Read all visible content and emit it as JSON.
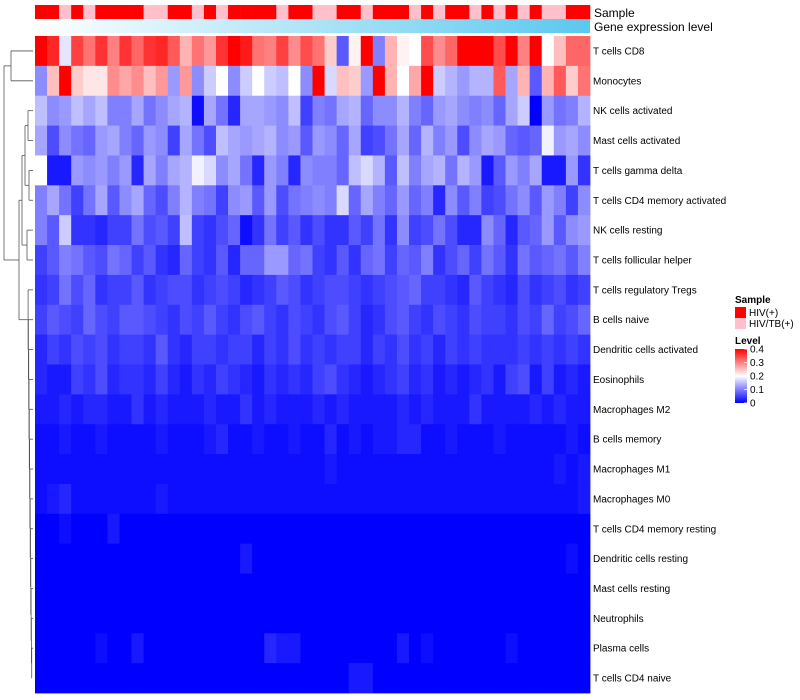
{
  "chart_data": {
    "type": "heatmap",
    "title": "",
    "annotation_labels": {
      "sample": "Sample",
      "expression": "Gene expression level"
    },
    "rows": [
      "T cells CD8",
      "Monocytes",
      "NK cells activated",
      "Mast cells activated",
      "T cells gamma delta",
      "T cells CD4 memory activated",
      "NK cells resting",
      "T cells follicular helper",
      "T cells regulatory  Tregs",
      "B cells naive",
      "Dendritic cells activated",
      "Eosinophils",
      "Macrophages M2",
      "B cells memory",
      "Macrophages M1",
      "Macrophages M0",
      "T cells CD4 memory resting",
      "Dendritic cells resting",
      "Mast cells resting",
      "Neutrophils",
      "Plasma cells",
      "T cells CD4 naive"
    ],
    "n_columns": 46,
    "column_groups": [
      0,
      0,
      1,
      0,
      1,
      0,
      0,
      0,
      0,
      1,
      1,
      0,
      0,
      1,
      0,
      1,
      0,
      0,
      0,
      0,
      1,
      0,
      0,
      1,
      1,
      0,
      0,
      1,
      0,
      0,
      0,
      1,
      0,
      1,
      0,
      0,
      1,
      0,
      1,
      0,
      1,
      0,
      1,
      1,
      0,
      0
    ],
    "values": [
      [
        0.4,
        0.37,
        0.18,
        0.35,
        0.31,
        0.36,
        0.3,
        0.36,
        0.32,
        0.36,
        0.37,
        0.33,
        0.26,
        0.31,
        0.28,
        0.36,
        0.4,
        0.38,
        0.31,
        0.3,
        0.35,
        0.29,
        0.34,
        0.31,
        0.24,
        0.07,
        0.21,
        0.4,
        0.1,
        0.26,
        0.21,
        0.2,
        0.34,
        0.29,
        0.32,
        0.4,
        0.4,
        0.4,
        0.34,
        0.4,
        0.3,
        0.4,
        0.2,
        0.25,
        0.32,
        0.32
      ],
      [
        0.11,
        0.25,
        0.4,
        0.24,
        0.22,
        0.22,
        0.29,
        0.27,
        0.29,
        0.25,
        0.28,
        0.12,
        0.28,
        0.11,
        0.16,
        0.2,
        0.11,
        0.16,
        0.2,
        0.16,
        0.15,
        0.2,
        0.11,
        0.4,
        0.17,
        0.25,
        0.24,
        0.12,
        0.4,
        0.26,
        0.2,
        0.27,
        0.4,
        0.16,
        0.14,
        0.12,
        0.14,
        0.14,
        0.33,
        0.13,
        0.26,
        0.07,
        0.26,
        0.33,
        0.24,
        0.31
      ],
      [
        0.15,
        0.11,
        0.12,
        0.15,
        0.13,
        0.15,
        0.1,
        0.1,
        0.13,
        0.09,
        0.11,
        0.13,
        0.14,
        0.01,
        0.13,
        0.09,
        0.03,
        0.13,
        0.13,
        0.12,
        0.11,
        0.15,
        0.05,
        0.1,
        0.09,
        0.13,
        0.14,
        0.08,
        0.11,
        0.11,
        0.14,
        0.1,
        0.08,
        0.12,
        0.13,
        0.11,
        0.1,
        0.11,
        0.08,
        0.13,
        0.16,
        0.0,
        0.12,
        0.09,
        0.1,
        0.14
      ],
      [
        0.13,
        0.06,
        0.11,
        0.09,
        0.08,
        0.12,
        0.13,
        0.1,
        0.08,
        0.12,
        0.11,
        0.05,
        0.13,
        0.09,
        0.06,
        0.15,
        0.13,
        0.12,
        0.13,
        0.14,
        0.11,
        0.12,
        0.07,
        0.12,
        0.11,
        0.08,
        0.13,
        0.05,
        0.06,
        0.09,
        0.13,
        0.08,
        0.14,
        0.1,
        0.12,
        0.06,
        0.11,
        0.13,
        0.12,
        0.08,
        0.07,
        0.08,
        0.19,
        0.12,
        0.13,
        0.11
      ],
      [
        0.2,
        0.02,
        0.02,
        0.12,
        0.11,
        0.12,
        0.1,
        0.12,
        0.03,
        0.13,
        0.1,
        0.13,
        0.14,
        0.19,
        0.17,
        0.11,
        0.13,
        0.09,
        0.03,
        0.12,
        0.1,
        0.03,
        0.11,
        0.1,
        0.1,
        0.08,
        0.15,
        0.17,
        0.14,
        0.07,
        0.15,
        0.1,
        0.13,
        0.14,
        0.09,
        0.14,
        0.12,
        0.02,
        0.07,
        0.12,
        0.1,
        0.13,
        0.02,
        0.02,
        0.12,
        0.04
      ],
      [
        0.1,
        0.13,
        0.09,
        0.05,
        0.09,
        0.13,
        0.07,
        0.11,
        0.13,
        0.08,
        0.06,
        0.1,
        0.14,
        0.1,
        0.09,
        0.05,
        0.11,
        0.12,
        0.07,
        0.12,
        0.06,
        0.09,
        0.1,
        0.11,
        0.1,
        0.17,
        0.08,
        0.13,
        0.1,
        0.08,
        0.12,
        0.08,
        0.1,
        0.03,
        0.11,
        0.07,
        0.1,
        0.05,
        0.06,
        0.09,
        0.11,
        0.07,
        0.12,
        0.1,
        0.05,
        0.11
      ],
      [
        0.1,
        0.07,
        0.16,
        0.04,
        0.04,
        0.03,
        0.05,
        0.05,
        0.09,
        0.06,
        0.07,
        0.05,
        0.15,
        0.05,
        0.04,
        0.06,
        0.08,
        0.01,
        0.04,
        0.09,
        0.05,
        0.07,
        0.04,
        0.06,
        0.04,
        0.04,
        0.07,
        0.05,
        0.09,
        0.04,
        0.11,
        0.05,
        0.06,
        0.09,
        0.06,
        0.03,
        0.03,
        0.11,
        0.08,
        0.03,
        0.07,
        0.08,
        0.12,
        0.07,
        0.11,
        0.12
      ],
      [
        0.05,
        0.07,
        0.1,
        0.09,
        0.07,
        0.06,
        0.09,
        0.08,
        0.05,
        0.07,
        0.04,
        0.03,
        0.08,
        0.05,
        0.04,
        0.07,
        0.03,
        0.08,
        0.08,
        0.12,
        0.12,
        0.08,
        0.09,
        0.05,
        0.04,
        0.07,
        0.04,
        0.08,
        0.09,
        0.05,
        0.08,
        0.07,
        0.1,
        0.04,
        0.06,
        0.08,
        0.05,
        0.09,
        0.07,
        0.04,
        0.09,
        0.07,
        0.08,
        0.09,
        0.07,
        0.1
      ],
      [
        0.04,
        0.05,
        0.09,
        0.06,
        0.08,
        0.04,
        0.05,
        0.05,
        0.07,
        0.04,
        0.05,
        0.06,
        0.06,
        0.04,
        0.05,
        0.06,
        0.05,
        0.03,
        0.04,
        0.05,
        0.07,
        0.06,
        0.04,
        0.05,
        0.06,
        0.06,
        0.05,
        0.04,
        0.05,
        0.06,
        0.07,
        0.08,
        0.05,
        0.05,
        0.04,
        0.03,
        0.07,
        0.05,
        0.04,
        0.03,
        0.06,
        0.04,
        0.05,
        0.06,
        0.04,
        0.05
      ],
      [
        0.05,
        0.07,
        0.06,
        0.05,
        0.08,
        0.06,
        0.05,
        0.07,
        0.07,
        0.06,
        0.05,
        0.04,
        0.06,
        0.05,
        0.07,
        0.05,
        0.04,
        0.06,
        0.07,
        0.05,
        0.04,
        0.06,
        0.05,
        0.04,
        0.06,
        0.07,
        0.05,
        0.03,
        0.04,
        0.06,
        0.07,
        0.05,
        0.04,
        0.06,
        0.05,
        0.04,
        0.06,
        0.05,
        0.05,
        0.04,
        0.06,
        0.05,
        0.08,
        0.05,
        0.06,
        0.08
      ],
      [
        0.03,
        0.05,
        0.04,
        0.06,
        0.05,
        0.06,
        0.04,
        0.05,
        0.05,
        0.04,
        0.07,
        0.04,
        0.03,
        0.05,
        0.05,
        0.04,
        0.05,
        0.05,
        0.03,
        0.05,
        0.04,
        0.06,
        0.04,
        0.05,
        0.04,
        0.05,
        0.05,
        0.03,
        0.05,
        0.04,
        0.06,
        0.04,
        0.05,
        0.03,
        0.05,
        0.04,
        0.05,
        0.04,
        0.04,
        0.04,
        0.05,
        0.04,
        0.05,
        0.04,
        0.05,
        0.04
      ],
      [
        0.03,
        0.02,
        0.02,
        0.05,
        0.04,
        0.06,
        0.03,
        0.04,
        0.04,
        0.03,
        0.05,
        0.03,
        0.02,
        0.04,
        0.03,
        0.05,
        0.04,
        0.03,
        0.02,
        0.04,
        0.03,
        0.04,
        0.03,
        0.05,
        0.06,
        0.04,
        0.03,
        0.02,
        0.03,
        0.04,
        0.05,
        0.03,
        0.04,
        0.02,
        0.03,
        0.02,
        0.03,
        0.04,
        0.02,
        0.05,
        0.06,
        0.02,
        0.05,
        0.02,
        0.03,
        0.02
      ],
      [
        0.02,
        0.02,
        0.03,
        0.02,
        0.03,
        0.03,
        0.02,
        0.02,
        0.04,
        0.02,
        0.03,
        0.02,
        0.02,
        0.02,
        0.03,
        0.02,
        0.02,
        0.04,
        0.02,
        0.03,
        0.02,
        0.02,
        0.02,
        0.03,
        0.02,
        0.03,
        0.02,
        0.02,
        0.02,
        0.02,
        0.03,
        0.02,
        0.03,
        0.02,
        0.02,
        0.02,
        0.04,
        0.02,
        0.02,
        0.02,
        0.02,
        0.03,
        0.02,
        0.03,
        0.02,
        0.02
      ],
      [
        0.01,
        0.01,
        0.02,
        0.01,
        0.01,
        0.02,
        0.01,
        0.01,
        0.01,
        0.01,
        0.02,
        0.01,
        0.01,
        0.01,
        0.02,
        0.03,
        0.01,
        0.01,
        0.02,
        0.01,
        0.01,
        0.02,
        0.01,
        0.01,
        0.03,
        0.01,
        0.02,
        0.01,
        0.02,
        0.02,
        0.03,
        0.03,
        0.01,
        0.01,
        0.02,
        0.01,
        0.01,
        0.01,
        0.02,
        0.01,
        0.01,
        0.01,
        0.01,
        0.01,
        0.02,
        0.01
      ],
      [
        0.01,
        0.01,
        0.01,
        0.01,
        0.01,
        0.01,
        0.01,
        0.01,
        0.01,
        0.01,
        0.01,
        0.01,
        0.01,
        0.01,
        0.01,
        0.01,
        0.01,
        0.01,
        0.01,
        0.01,
        0.01,
        0.01,
        0.01,
        0.01,
        0.02,
        0.01,
        0.01,
        0.01,
        0.01,
        0.01,
        0.01,
        0.01,
        0.01,
        0.01,
        0.01,
        0.01,
        0.01,
        0.01,
        0.01,
        0.01,
        0.01,
        0.01,
        0.01,
        0.02,
        0.01,
        0.02
      ],
      [
        0.01,
        0.02,
        0.03,
        0.01,
        0.01,
        0.01,
        0.01,
        0.01,
        0.01,
        0.01,
        0.02,
        0.01,
        0.01,
        0.01,
        0.01,
        0.01,
        0.01,
        0.01,
        0.01,
        0.01,
        0.01,
        0.01,
        0.01,
        0.01,
        0.01,
        0.01,
        0.01,
        0.01,
        0.01,
        0.01,
        0.01,
        0.01,
        0.01,
        0.01,
        0.01,
        0.01,
        0.01,
        0.01,
        0.01,
        0.01,
        0.01,
        0.01,
        0.01,
        0.01,
        0.01,
        0.02
      ],
      [
        0.0,
        0.0,
        0.01,
        0.0,
        0.0,
        0.0,
        0.02,
        0.0,
        0.0,
        0.0,
        0.0,
        0.0,
        0.0,
        0.0,
        0.0,
        0.0,
        0.0,
        0.0,
        0.0,
        0.0,
        0.0,
        0.0,
        0.0,
        0.0,
        0.0,
        0.0,
        0.0,
        0.0,
        0.0,
        0.0,
        0.0,
        0.0,
        0.0,
        0.0,
        0.0,
        0.0,
        0.0,
        0.0,
        0.0,
        0.0,
        0.0,
        0.0,
        0.0,
        0.0,
        0.0,
        0.0
      ],
      [
        0.0,
        0.0,
        0.0,
        0.0,
        0.0,
        0.0,
        0.0,
        0.0,
        0.0,
        0.0,
        0.0,
        0.0,
        0.0,
        0.0,
        0.0,
        0.0,
        0.0,
        0.02,
        0.0,
        0.0,
        0.0,
        0.0,
        0.0,
        0.0,
        0.0,
        0.0,
        0.0,
        0.0,
        0.0,
        0.0,
        0.0,
        0.0,
        0.0,
        0.0,
        0.0,
        0.0,
        0.0,
        0.0,
        0.0,
        0.0,
        0.0,
        0.0,
        0.0,
        0.0,
        0.01,
        0.0
      ],
      [
        0.0,
        0.0,
        0.0,
        0.0,
        0.0,
        0.0,
        0.0,
        0.0,
        0.0,
        0.0,
        0.0,
        0.0,
        0.0,
        0.0,
        0.0,
        0.0,
        0.0,
        0.0,
        0.0,
        0.0,
        0.0,
        0.0,
        0.0,
        0.0,
        0.0,
        0.0,
        0.0,
        0.0,
        0.0,
        0.0,
        0.0,
        0.0,
        0.0,
        0.0,
        0.0,
        0.0,
        0.0,
        0.0,
        0.0,
        0.0,
        0.0,
        0.0,
        0.0,
        0.0,
        0.0,
        0.0
      ],
      [
        0.0,
        0.0,
        0.0,
        0.0,
        0.0,
        0.0,
        0.0,
        0.0,
        0.0,
        0.0,
        0.0,
        0.0,
        0.0,
        0.0,
        0.0,
        0.0,
        0.0,
        0.0,
        0.0,
        0.0,
        0.0,
        0.0,
        0.0,
        0.0,
        0.0,
        0.0,
        0.0,
        0.0,
        0.0,
        0.0,
        0.0,
        0.0,
        0.0,
        0.0,
        0.0,
        0.0,
        0.0,
        0.0,
        0.0,
        0.0,
        0.0,
        0.0,
        0.0,
        0.0,
        0.0,
        0.0
      ],
      [
        0.0,
        0.0,
        0.0,
        0.0,
        0.0,
        0.01,
        0.0,
        0.0,
        0.02,
        0.0,
        0.0,
        0.0,
        0.0,
        0.0,
        0.0,
        0.0,
        0.0,
        0.0,
        0.0,
        0.03,
        0.02,
        0.02,
        0.0,
        0.0,
        0.0,
        0.0,
        0.0,
        0.0,
        0.0,
        0.0,
        0.02,
        0.0,
        0.01,
        0.0,
        0.0,
        0.0,
        0.0,
        0.0,
        0.0,
        0.01,
        0.0,
        0.0,
        0.0,
        0.0,
        0.0,
        0.0
      ],
      [
        0.0,
        0.0,
        0.0,
        0.0,
        0.0,
        0.0,
        0.0,
        0.0,
        0.0,
        0.0,
        0.0,
        0.0,
        0.0,
        0.0,
        0.0,
        0.0,
        0.0,
        0.0,
        0.0,
        0.0,
        0.0,
        0.0,
        0.0,
        0.0,
        0.0,
        0.0,
        0.02,
        0.02,
        0.0,
        0.0,
        0.0,
        0.0,
        0.0,
        0.0,
        0.0,
        0.0,
        0.0,
        0.0,
        0.0,
        0.0,
        0.0,
        0.0,
        0.0,
        0.0,
        0.0,
        0.0
      ]
    ],
    "legend_sample": {
      "title": "Sample",
      "entries": [
        {
          "label": "HIV(+)",
          "color": "#ff0000"
        },
        {
          "label": "HIV/TB(+)",
          "color": "#ffc0cb"
        }
      ]
    },
    "legend_level": {
      "title": "Level",
      "ticks": [
        "0.4",
        "0.3",
        "0.2",
        "0.1",
        "0"
      ],
      "tick_values": [
        0.4,
        0.3,
        0.2,
        0.1,
        0
      ],
      "range": [
        0,
        0.4
      ]
    },
    "color_scale": {
      "low": "#0000ff",
      "mid": "#ffffff",
      "high": "#ff0000",
      "mid_value": 0.2
    },
    "expression_gradient": {
      "from": "#ffffff",
      "to": "#5bc8ee"
    }
  }
}
